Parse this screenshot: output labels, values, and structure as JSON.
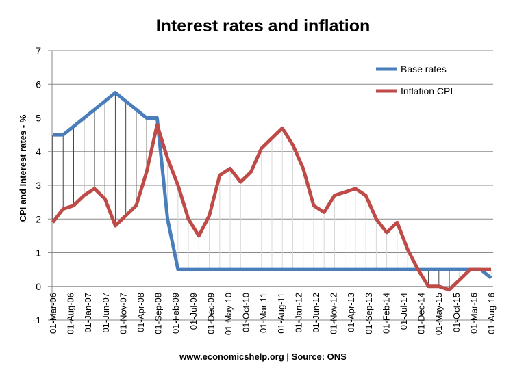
{
  "chart_data": {
    "type": "line",
    "title": "Interest rates and inflation",
    "ylabel": "CPI and Interest rates - %",
    "xlabel": "",
    "footer": "www.economicshelp.org | Source: ONS",
    "ylim": [
      -1,
      7
    ],
    "yticks": [
      "-1",
      "0",
      "1",
      "2",
      "3",
      "4",
      "5",
      "6",
      "7"
    ],
    "grid": true,
    "legend_position": "top-right",
    "xtick_labels": [
      "01-Mar-06",
      "01-Aug-06",
      "01-Jan-07",
      "01-Jun-07",
      "01-Nov-07",
      "01-Apr-08",
      "01-Sep-08",
      "01-Feb-09",
      "01-Jul-09",
      "01-Dec-09",
      "01-May-10",
      "01-Oct-10",
      "01-Mar-11",
      "01-Aug-11",
      "01-Jan-12",
      "01-Jun-12",
      "01-Nov-12",
      "01-Apr-13",
      "01-Sep-13",
      "01-Feb-14",
      "01-Jul-14",
      "01-Dec-14",
      "01-May-15",
      "01-Oct-15",
      "01-Mar-16",
      "01-Aug-16"
    ],
    "series": [
      {
        "name": "Base rates",
        "color": "#4a7ebb",
        "values": [
          4.5,
          4.5,
          4.75,
          5.0,
          5.25,
          5.5,
          5.75,
          5.5,
          5.25,
          5.0,
          5.0,
          2.0,
          0.5,
          0.5,
          0.5,
          0.5,
          0.5,
          0.5,
          0.5,
          0.5,
          0.5,
          0.5,
          0.5,
          0.5,
          0.5,
          0.5,
          0.5,
          0.5,
          0.5,
          0.5,
          0.5,
          0.5,
          0.5,
          0.5,
          0.5,
          0.5,
          0.5,
          0.5,
          0.5,
          0.5,
          0.5,
          0.5,
          0.25
        ]
      },
      {
        "name": "Inflation CPI",
        "color": "#be4b48",
        "values": [
          1.9,
          2.3,
          2.4,
          2.7,
          2.9,
          2.6,
          1.8,
          2.1,
          2.4,
          3.4,
          4.8,
          3.8,
          3.0,
          2.0,
          1.5,
          2.1,
          3.3,
          3.5,
          3.1,
          3.4,
          4.1,
          4.4,
          4.7,
          4.2,
          3.5,
          2.4,
          2.2,
          2.7,
          2.8,
          2.9,
          2.7,
          2.0,
          1.6,
          1.9,
          1.1,
          0.5,
          0.0,
          0.0,
          -0.1,
          0.2,
          0.5,
          0.5,
          0.5
        ]
      }
    ]
  }
}
